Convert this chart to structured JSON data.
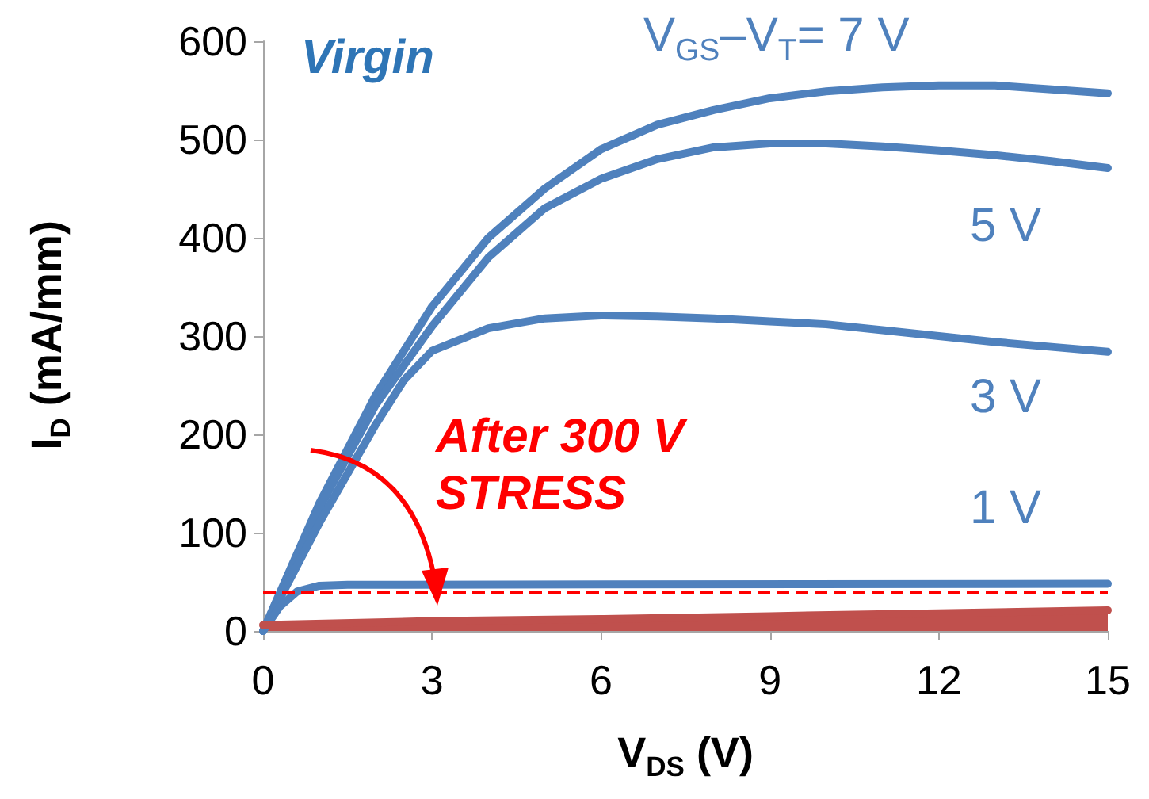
{
  "chart_data": {
    "type": "line",
    "xlabel": "V$_{DS}$ (V)",
    "ylabel": "I$_{D}$ (mA/mm)",
    "xlim": [
      0,
      15
    ],
    "xticks": [
      0,
      3,
      6,
      9,
      12,
      15
    ],
    "ylim": [
      0,
      600
    ],
    "yticks": [
      0,
      100,
      200,
      300,
      400,
      500,
      600
    ],
    "grid": false,
    "legend": false,
    "marker": "none",
    "line_style": "solid",
    "annotations": [
      "Virgin",
      "After 300 V STRESS"
    ],
    "ref_lines": [
      {
        "axis": "y",
        "value": 39,
        "label": null,
        "color": "#ff0000",
        "line_style": "dashed"
      }
    ],
    "series": [
      {
        "name": "V$_{GS}$–V$_{T}$= 7 V",
        "color": "#4f81bd",
        "x": [
          0,
          1,
          2,
          3,
          4,
          5,
          6,
          7,
          8,
          9,
          10,
          11,
          12,
          13,
          14,
          15
        ],
        "values": [
          0,
          130,
          240,
          330,
          400,
          450,
          490,
          515,
          530,
          542,
          549,
          553,
          555,
          555,
          551,
          547
        ]
      },
      {
        "name": "5 V",
        "color": "#4f81bd",
        "x": [
          0,
          1,
          2,
          3,
          4,
          5,
          6,
          7,
          8,
          9,
          10,
          11,
          12,
          13,
          14,
          15
        ],
        "values": [
          0,
          125,
          230,
          310,
          380,
          430,
          460,
          480,
          492,
          496,
          496,
          493,
          489,
          484,
          478,
          471
        ]
      },
      {
        "name": "3 V",
        "color": "#4f81bd",
        "x": [
          0,
          1,
          2,
          2.5,
          3,
          4,
          5,
          6,
          7,
          8,
          9,
          10,
          11,
          12,
          13,
          14,
          15
        ],
        "values": [
          0,
          110,
          210,
          255,
          285,
          308,
          318,
          321,
          320,
          318,
          315,
          312,
          306,
          300,
          294,
          289,
          284
        ]
      },
      {
        "name": "1 V",
        "color": "#4f81bd",
        "x": [
          0,
          0.3,
          0.6,
          1,
          1.5,
          15
        ],
        "values": [
          0,
          25,
          40,
          46,
          47,
          48
        ]
      },
      {
        "type": "area",
        "color": "#c0504d",
        "x": [
          0,
          3,
          6,
          9,
          12,
          15
        ],
        "values": [
          6,
          10,
          12,
          15,
          18,
          21
        ]
      }
    ]
  }
}
